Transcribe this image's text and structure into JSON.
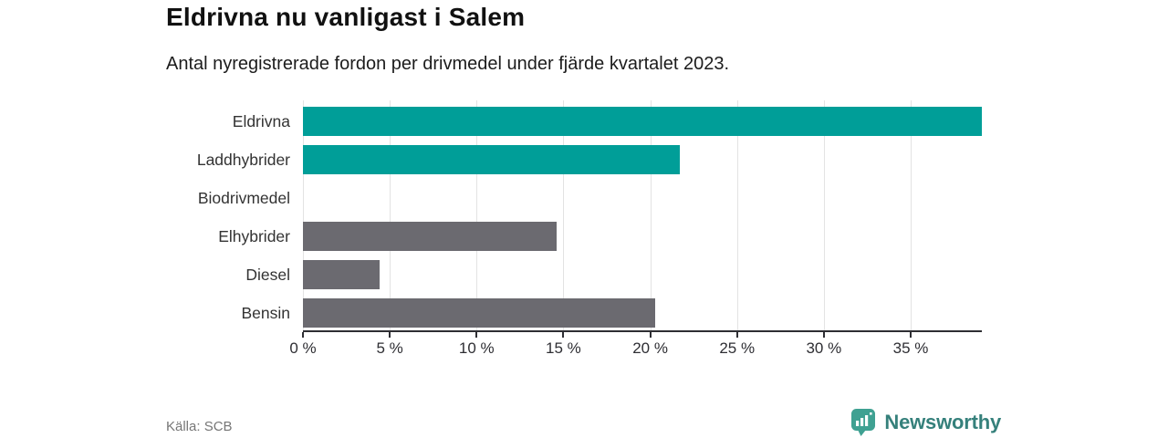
{
  "header": {
    "title": "Eldrivna nu vanligast i Salem",
    "subtitle": "Antal nyregistrerade fordon per drivmedel under fjärde kvartalet 2023."
  },
  "chart_data": {
    "type": "bar",
    "orientation": "horizontal",
    "title": "Eldrivna nu vanligast i Salem",
    "subtitle": "Antal nyregistrerade fordon per drivmedel under fjärde kvartalet 2023.",
    "categories": [
      "Eldrivna",
      "Laddhybrider",
      "Biodrivmedel",
      "Elhybrider",
      "Diesel",
      "Bensin"
    ],
    "values": [
      39.1,
      21.7,
      0,
      14.6,
      4.4,
      20.3
    ],
    "unit": "%",
    "bar_colors": [
      "#009e98",
      "#009e98",
      "#6b6a70",
      "#6b6a70",
      "#6b6a70",
      "#6b6a70"
    ],
    "x_tick_values": [
      0,
      5,
      10,
      15,
      20,
      25,
      30,
      35
    ],
    "x_tick_labels": [
      "0 %",
      "5 %",
      "10 %",
      "15 %",
      "20 %",
      "25 %",
      "30 %",
      "35 %"
    ],
    "xlim": [
      0,
      39.1
    ],
    "grid": "vertical",
    "gridline_color": "#e3e3e3",
    "axis_color": "#2e2e33"
  },
  "footer": {
    "source": "Källa: SCB",
    "brand_name": "Newsworthy",
    "brand_color": "#35807b",
    "brand_icon_color": "#3fa192"
  }
}
